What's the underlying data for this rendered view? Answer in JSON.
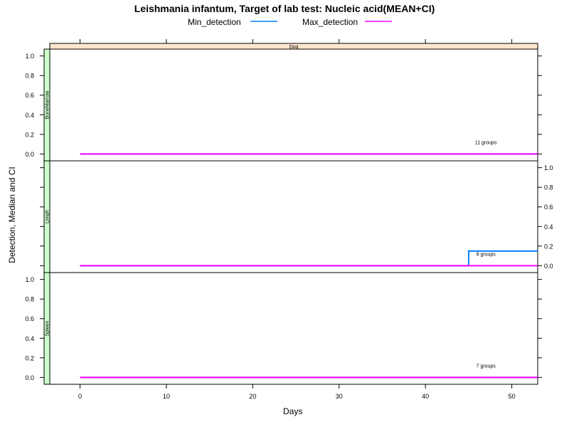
{
  "chart_data": {
    "type": "line",
    "title": "Leishmania infantum, Target of lab test: Nucleic acid(MEAN+CI)",
    "xlabel": "Days",
    "ylabel": "Detection, Median and CI",
    "strip_top": "Dog",
    "xlim": [
      -3.5,
      53
    ],
    "ylim": [
      -0.07,
      1.07
    ],
    "x_ticks": [
      0,
      10,
      20,
      30,
      40,
      50
    ],
    "y_ticks": [
      0.0,
      0.2,
      0.4,
      0.6,
      0.8,
      1.0
    ],
    "legend": {
      "placement": "top",
      "entries": [
        {
          "name": "Min_detection",
          "color": "#0080ff"
        },
        {
          "name": "Max_detection",
          "color": "#ff00ff"
        }
      ]
    },
    "panels": [
      {
        "name": "BoneMarrow",
        "annotation": "11 groups",
        "annotation_x": 47,
        "y_axis_side": "left",
        "series": [
          {
            "name": "Min_detection",
            "points": [
              [
                0,
                0
              ],
              [
                53,
                0
              ]
            ]
          },
          {
            "name": "Max_detection",
            "points": [
              [
                0,
                0
              ],
              [
                53,
                0
              ]
            ]
          }
        ]
      },
      {
        "name": "Limph",
        "annotation": "9 groups",
        "annotation_x": 47,
        "y_axis_side": "right",
        "series": [
          {
            "name": "Min_detection",
            "points": [
              [
                0,
                0
              ],
              [
                45,
                0
              ],
              [
                45,
                0.15
              ],
              [
                53,
                0.15
              ]
            ]
          },
          {
            "name": "Max_detection",
            "points": [
              [
                0,
                0
              ],
              [
                53,
                0
              ]
            ]
          }
        ]
      },
      {
        "name": "Spleen",
        "annotation": "7 groups",
        "annotation_x": 47,
        "y_axis_side": "left",
        "series": [
          {
            "name": "Min_detection",
            "points": [
              [
                0,
                0
              ],
              [
                53,
                0
              ]
            ]
          },
          {
            "name": "Max_detection",
            "points": [
              [
                0,
                0
              ],
              [
                53,
                0
              ]
            ]
          }
        ]
      }
    ]
  }
}
